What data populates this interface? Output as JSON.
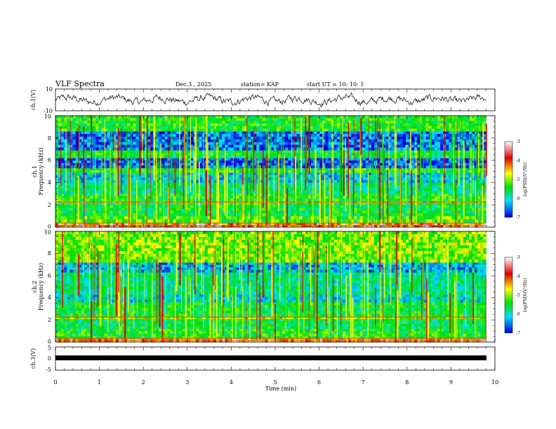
{
  "header": {
    "title": "VLF Spectra",
    "date": "Dec.3  , 2025",
    "station": "station= KAP",
    "start_ut": "start  UT  =   10: 10: 1"
  },
  "colorbar_label": "log(PSD)(V²/Hz)",
  "colors": {
    "high": "#e00000",
    "mid_high": "#ffff00",
    "mid": "#00e000",
    "mid_low": "#00e0ff",
    "low": "#0000e0"
  },
  "chart_data": [
    {
      "type": "line",
      "panel": "ch1-waveform",
      "ylabel": "ch.1(V)",
      "ylim": [
        -10,
        10
      ],
      "yticks": [
        "10",
        "-10"
      ],
      "xlim": [
        0,
        10
      ],
      "series_note": "noisy waveform, amplitude about ±5 V"
    },
    {
      "type": "heatmap",
      "panel": "ch1-spectrogram",
      "ylabel": "ch.1\nFrequency (kHz)",
      "ylim": [
        0,
        10
      ],
      "yticks": [
        "0",
        "2",
        "4",
        "6",
        "8",
        "10"
      ],
      "xlim": [
        0,
        10
      ],
      "colorbar": {
        "range": [
          -7,
          -3
        ],
        "ticks": [
          "-3",
          "-4",
          "-5",
          "-6",
          "-7"
        ]
      },
      "data_until_min": 9.8,
      "bands": [
        {
          "from": 0.0,
          "to": 0.4,
          "level": -3.5
        },
        {
          "from": 0.4,
          "to": 1.0,
          "level": -4.8
        },
        {
          "from": 1.0,
          "to": 2.2,
          "level": -5.2
        },
        {
          "from": 2.2,
          "to": 2.35,
          "level": -4.2
        },
        {
          "from": 2.35,
          "to": 3.0,
          "level": -5.1
        },
        {
          "from": 3.0,
          "to": 4.0,
          "level": -5.5
        },
        {
          "from": 4.0,
          "to": 4.9,
          "level": -6.0
        },
        {
          "from": 4.9,
          "to": 5.3,
          "level": -5.0
        },
        {
          "from": 5.3,
          "to": 6.2,
          "level": -6.6
        },
        {
          "from": 6.2,
          "to": 6.9,
          "level": -5.2
        },
        {
          "from": 6.9,
          "to": 8.6,
          "level": -6.5
        },
        {
          "from": 8.6,
          "to": 10.0,
          "level": -5.0
        }
      ]
    },
    {
      "type": "heatmap",
      "panel": "ch2-spectrogram",
      "ylabel": "ch.2\nFrequency (kHz)",
      "ylim": [
        0,
        10
      ],
      "yticks": [
        "0",
        "2",
        "4",
        "6",
        "8",
        "10"
      ],
      "xlim": [
        0,
        10
      ],
      "colorbar": {
        "range": [
          -7,
          -3
        ],
        "ticks": [
          "-3",
          "-4",
          "-5",
          "-6",
          "-7"
        ]
      },
      "data_until_min": 9.8,
      "bands": [
        {
          "from": 0.0,
          "to": 0.3,
          "level": -3.6
        },
        {
          "from": 0.3,
          "to": 1.2,
          "level": -5.0
        },
        {
          "from": 1.2,
          "to": 2.1,
          "level": -5.3
        },
        {
          "from": 2.1,
          "to": 2.3,
          "level": -4.3
        },
        {
          "from": 2.3,
          "to": 3.6,
          "level": -5.2
        },
        {
          "from": 3.6,
          "to": 4.3,
          "level": -5.9
        },
        {
          "from": 4.3,
          "to": 6.3,
          "level": -5.6
        },
        {
          "from": 6.3,
          "to": 7.2,
          "level": -6.2
        },
        {
          "from": 7.2,
          "to": 10.0,
          "level": -4.6
        }
      ]
    },
    {
      "type": "line",
      "panel": "ch3-waveform",
      "ylabel": "ch.3(V)",
      "ylim": [
        -5,
        5
      ],
      "yticks": [
        "5",
        "0",
        "-5"
      ],
      "xlim": [
        0,
        10
      ],
      "xlabel": "Time (min)",
      "xticks": [
        "0",
        "1",
        "2",
        "3",
        "4",
        "5",
        "6",
        "7",
        "8",
        "9",
        "10"
      ],
      "series_note": "constant thick band near -0.5 V"
    }
  ]
}
